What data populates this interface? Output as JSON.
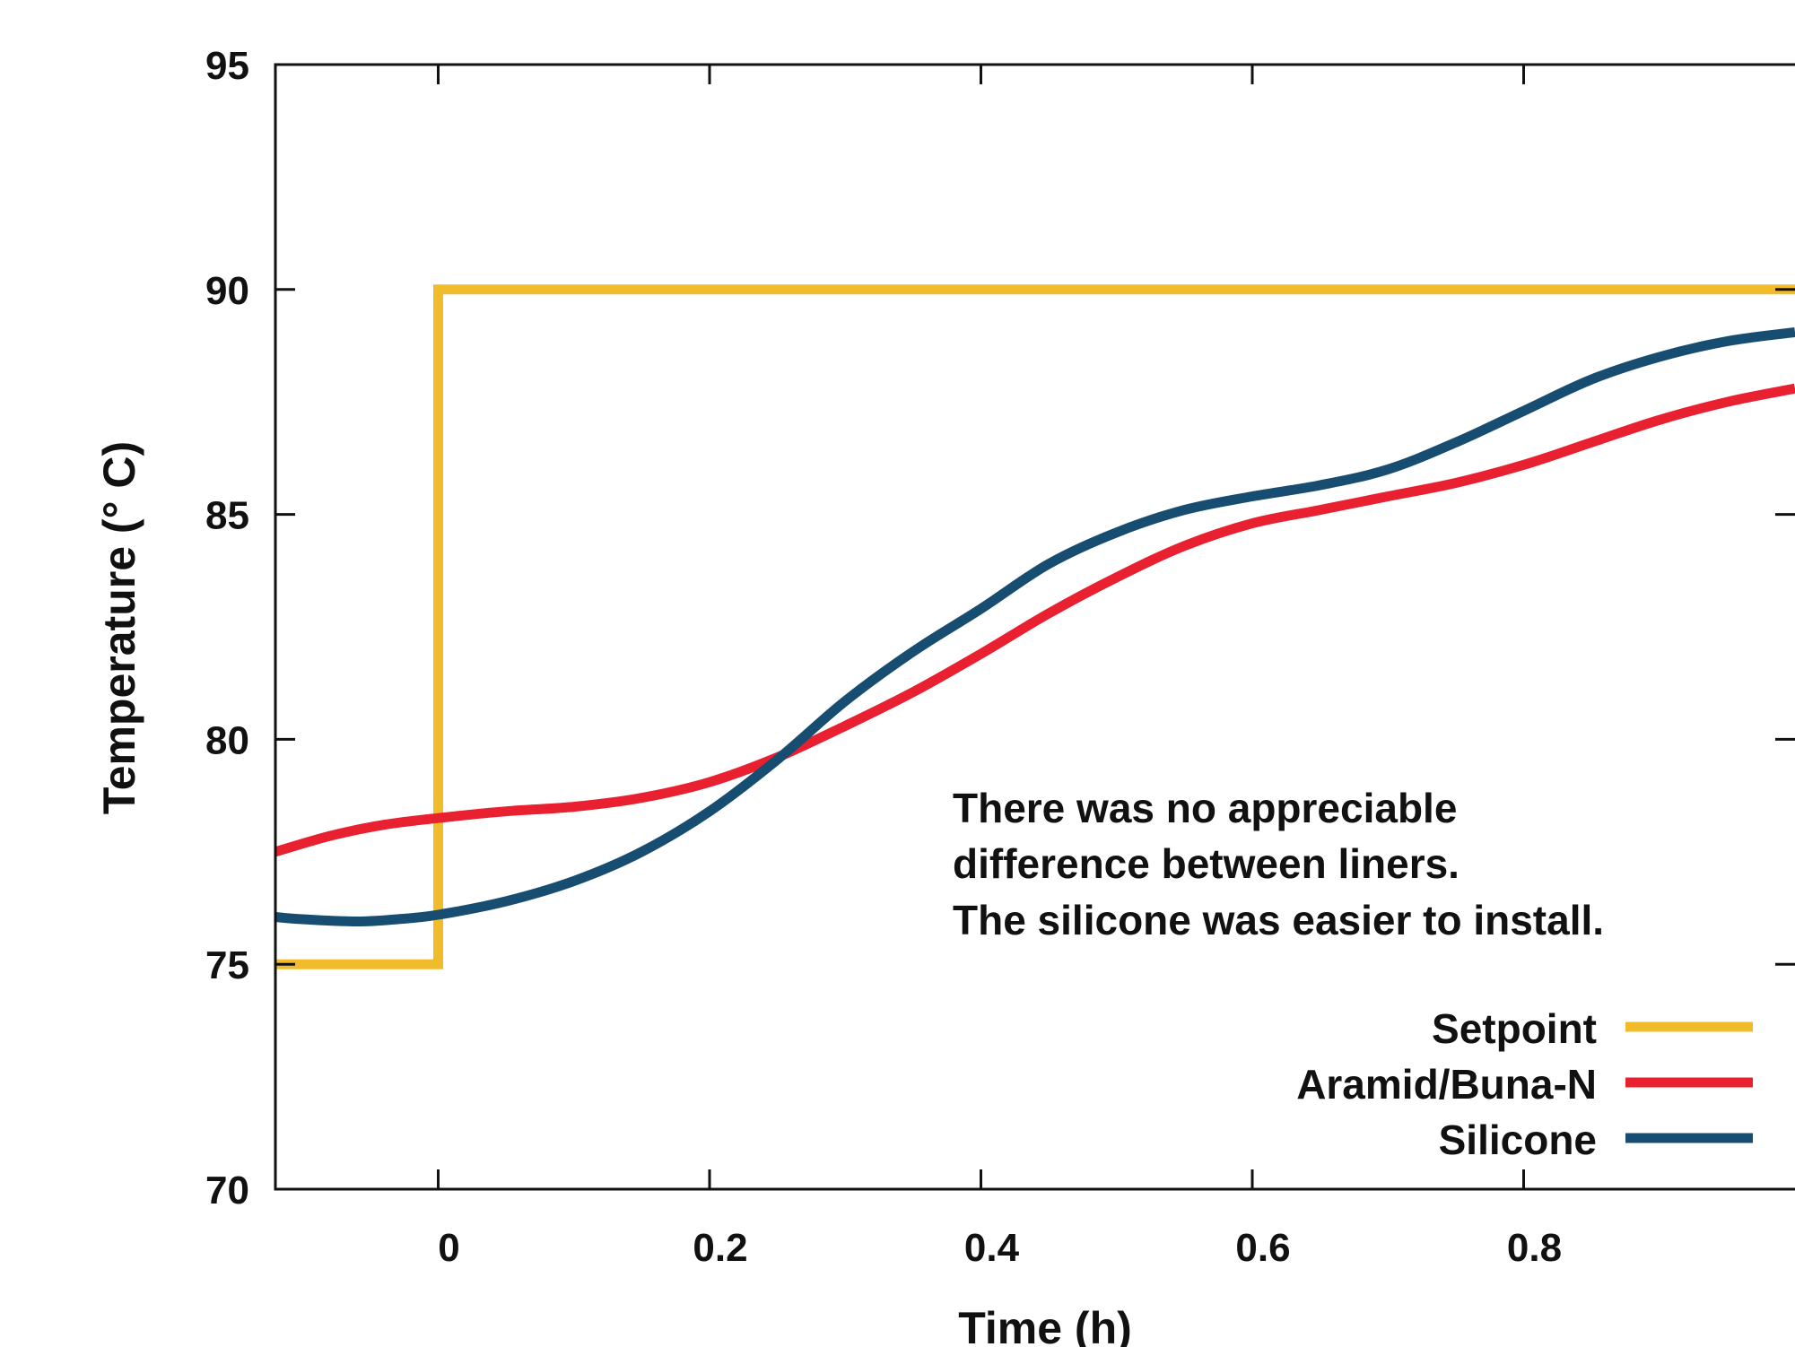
{
  "chart_data": {
    "type": "line",
    "title": "",
    "xlabel": "Time (h)",
    "ylabel": "Temperature (° C)",
    "xlim": [
      -0.12,
      1.0
    ],
    "ylim": [
      70,
      95
    ],
    "x_ticks": [
      0,
      0.2,
      0.4,
      0.6,
      0.8
    ],
    "x_tick_labels": [
      "0",
      "0.2",
      "0.4",
      "0.6",
      "0.8"
    ],
    "y_ticks": [
      70,
      75,
      80,
      85,
      90,
      95
    ],
    "y_tick_labels": [
      "70",
      "75",
      "80",
      "85",
      "90",
      "95"
    ],
    "grid": false,
    "legend_position": "bottom-right",
    "annotation": [
      "There was no appreciable",
      "difference between liners.",
      "The silicone was easier to install."
    ],
    "series": [
      {
        "name": "Setpoint",
        "color": "#F0BC2C",
        "step": true,
        "x": [
          -0.12,
          0.0,
          0.0,
          1.0
        ],
        "y": [
          75,
          75,
          90,
          90
        ]
      },
      {
        "name": "Aramid/Buna-N",
        "color": "#E8202F",
        "x": [
          -0.12,
          -0.08,
          -0.04,
          0.0,
          0.05,
          0.1,
          0.15,
          0.2,
          0.25,
          0.3,
          0.35,
          0.4,
          0.45,
          0.5,
          0.55,
          0.6,
          0.65,
          0.7,
          0.75,
          0.8,
          0.85,
          0.9,
          0.95,
          1.0
        ],
        "y": [
          77.5,
          77.85,
          78.1,
          78.25,
          78.4,
          78.5,
          78.7,
          79.05,
          79.6,
          80.3,
          81.05,
          81.9,
          82.8,
          83.6,
          84.3,
          84.8,
          85.1,
          85.4,
          85.7,
          86.1,
          86.6,
          87.1,
          87.5,
          87.8
        ]
      },
      {
        "name": "Silicone",
        "color": "#184D72",
        "x": [
          -0.12,
          -0.1,
          -0.06,
          -0.03,
          0.0,
          0.05,
          0.1,
          0.15,
          0.2,
          0.25,
          0.3,
          0.35,
          0.4,
          0.45,
          0.5,
          0.55,
          0.6,
          0.65,
          0.7,
          0.75,
          0.8,
          0.85,
          0.9,
          0.95,
          1.0
        ],
        "y": [
          76.05,
          76.0,
          75.95,
          76.0,
          76.1,
          76.4,
          76.85,
          77.5,
          78.4,
          79.55,
          80.85,
          81.95,
          82.9,
          83.9,
          84.6,
          85.1,
          85.4,
          85.65,
          86.0,
          86.6,
          87.3,
          88.0,
          88.5,
          88.85,
          89.05
        ]
      }
    ]
  }
}
